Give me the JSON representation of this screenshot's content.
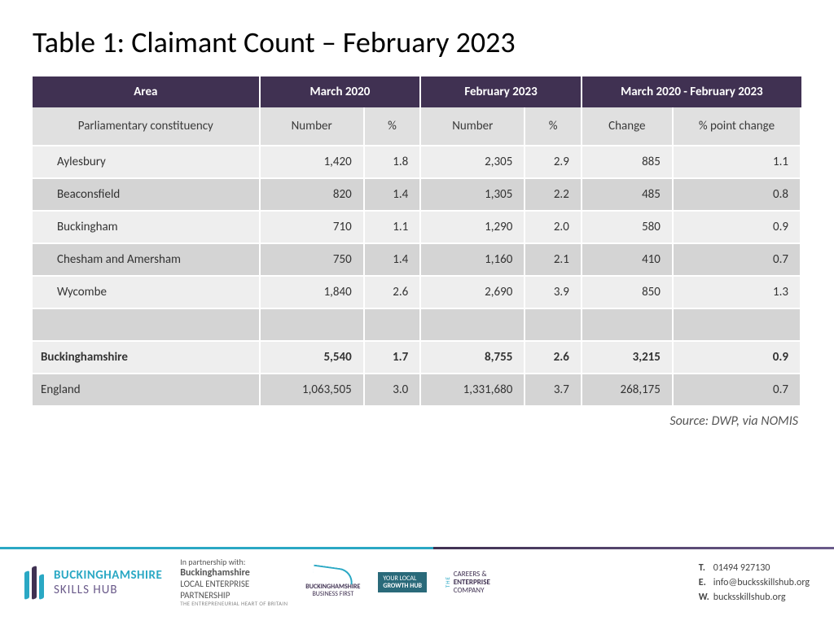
{
  "title": "Table 1: Claimant Count – February 2023",
  "table": {
    "group_headers": [
      "Area",
      "March 2020",
      "February 2023",
      "March 2020 - February 2023"
    ],
    "sub_headers": [
      "Parliamentary constituency",
      "Number",
      "%",
      "Number",
      "%",
      "Change",
      "% point change"
    ],
    "rows": [
      {
        "area": "Aylesbury",
        "cells": [
          "1,420",
          "1.8",
          "2,305",
          "2.9",
          "885",
          "1.1"
        ],
        "shade": "A"
      },
      {
        "area": "Beaconsfield",
        "cells": [
          "820",
          "1.4",
          "1,305",
          "2.2",
          "485",
          "0.8"
        ],
        "shade": "B"
      },
      {
        "area": "Buckingham",
        "cells": [
          "710",
          "1.1",
          "1,290",
          "2.0",
          "580",
          "0.9"
        ],
        "shade": "A"
      },
      {
        "area": "Chesham and Amersham",
        "cells": [
          "750",
          "1.4",
          "1,160",
          "2.1",
          "410",
          "0.7"
        ],
        "shade": "B"
      },
      {
        "area": "Wycombe",
        "cells": [
          "1,840",
          "2.6",
          "2,690",
          "3.9",
          "850",
          "1.3"
        ],
        "shade": "A"
      }
    ],
    "summary_rows": [
      {
        "area": "Buckinghamshire",
        "cells": [
          "5,540",
          "1.7",
          "8,755",
          "2.6",
          "3,215",
          "0.9"
        ],
        "shade": "A",
        "bold": true
      },
      {
        "area": "England",
        "cells": [
          "1,063,505",
          "3.0",
          "1,331,680",
          "3.7",
          "268,175",
          "0.7"
        ],
        "shade": "B",
        "bold": false
      }
    ],
    "header_bg": "#403152",
    "header_fg": "#ffffff",
    "subheader_bg": "#e0e0e0",
    "rowA_bg": "#eeeeee",
    "rowB_bg": "#d4d4d4"
  },
  "source": "Source: DWP, via NOMIS",
  "footer": {
    "main_logo": {
      "line1": "BUCKINGHAMSHIRE",
      "line2": "SKILLS HUB"
    },
    "partnership_label": "In partnership with:",
    "lep": {
      "l1": "Buckinghamshire",
      "l2": "LOCAL ENTERPRISE",
      "l3": "PARTNERSHIP",
      "l4": "THE ENTREPRENEURIAL HEART OF BRITAIN"
    },
    "bbf": {
      "l1": "BUCKINGHAMSHIRE",
      "l2": "BUSINESS FIRST"
    },
    "growth": {
      "l1": "YOUR LOCAL",
      "l2": "GROWTH HUB"
    },
    "ce": {
      "side": "THE",
      "l1": "CAREERS &",
      "l2": "ENTERPRISE",
      "l3": "COMPANY"
    },
    "contact": {
      "t_label": "T.",
      "t": "01494 927130",
      "e_label": "E.",
      "e": "info@bucksskillshub.org",
      "w_label": "W.",
      "w": "bucksskillshub.org"
    },
    "line_color1": "#2aa8c4",
    "line_color2": "#403152"
  }
}
